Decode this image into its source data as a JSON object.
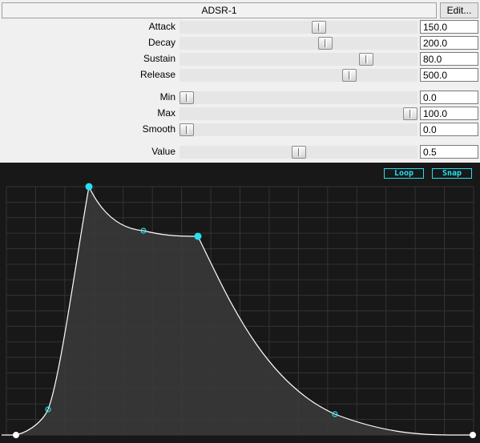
{
  "header": {
    "title": "ADSR-1",
    "edit_label": "Edit..."
  },
  "params": [
    {
      "label": "Attack",
      "value": "150.0",
      "slider": 0.585
    },
    {
      "label": "Decay",
      "value": "200.0",
      "slider": 0.614
    },
    {
      "label": "Sustain",
      "value": "80.0",
      "slider": 0.783
    },
    {
      "label": "Release",
      "value": "500.0",
      "slider": 0.715
    },
    {
      "label": "Min",
      "value": "0.0",
      "slider": 0.03
    },
    {
      "label": "Max",
      "value": "100.0",
      "slider": 0.97
    },
    {
      "label": "Smooth",
      "value": "0.0",
      "slider": 0.03
    },
    {
      "label": "Value",
      "value": "0.5",
      "slider": 0.5
    }
  ],
  "editor": {
    "loop_label": "Loop",
    "snap_label": "Snap",
    "accent": "#28e0f0",
    "grid_color": "#333333",
    "curve_color": "#ffffff"
  }
}
